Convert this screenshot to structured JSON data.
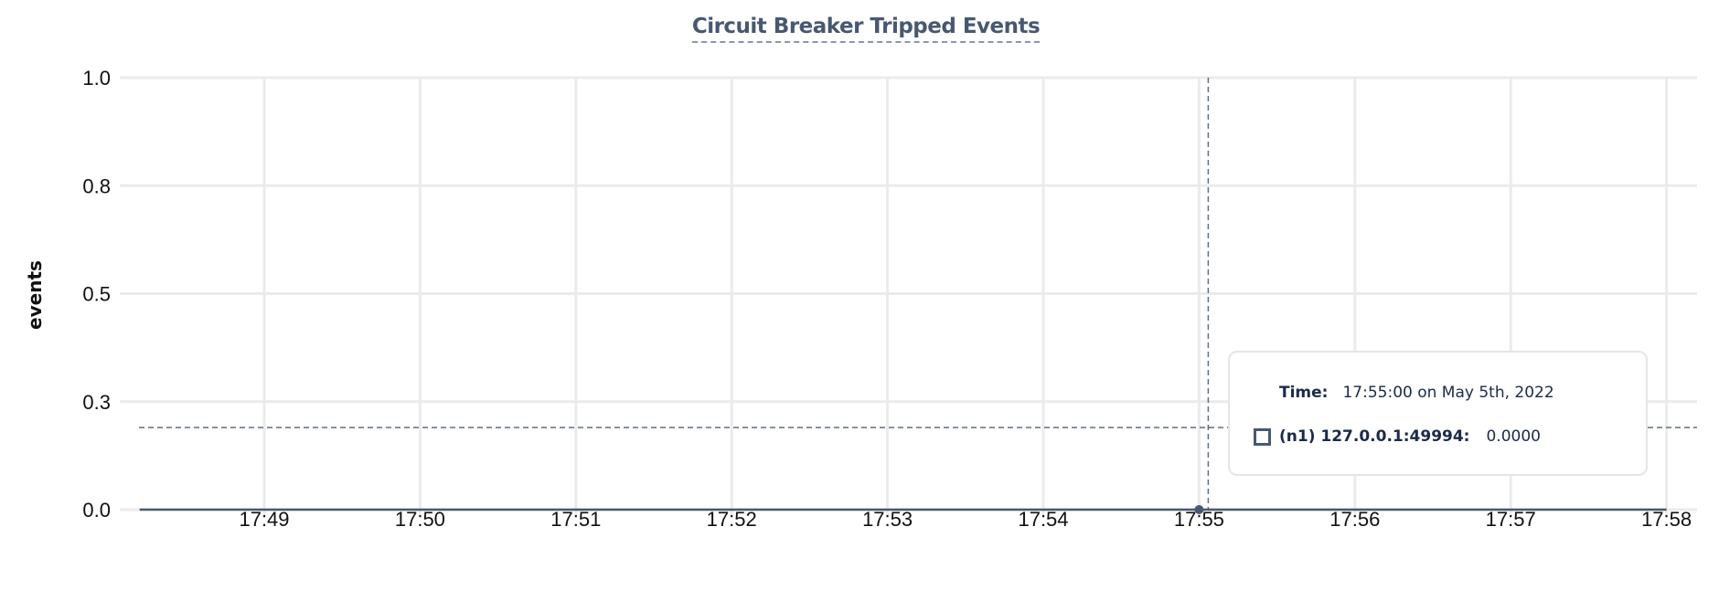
{
  "chart_data": {
    "type": "line",
    "title": "Circuit Breaker Tripped Events",
    "ylabel": "events",
    "xlabel": "",
    "ylim": [
      0,
      1
    ],
    "y_ticks": [
      "0.0",
      "0.3",
      "0.5",
      "0.8",
      "1.0"
    ],
    "y_tick_values": [
      0,
      0.25,
      0.5,
      0.75,
      1
    ],
    "x_ticks": [
      "17:49",
      "17:50",
      "17:51",
      "17:52",
      "17:53",
      "17:54",
      "17:55",
      "17:56",
      "17:57",
      "17:58"
    ],
    "xlim": [
      "17:48:12",
      "17:58:00"
    ],
    "grid": true,
    "series": [
      {
        "name": "(n1) 127.0.0.1:49994",
        "color": "#475872",
        "x": [
          "17:48:12",
          "17:55:00",
          "17:58:00"
        ],
        "values": [
          0,
          0,
          0
        ]
      }
    ],
    "hover": {
      "x": "17:55:00",
      "y_cursor": 0.19
    }
  },
  "tooltip": {
    "time_label": "Time:",
    "time_value": "17:55:00 on May 5th, 2022",
    "series_label": "(n1) 127.0.0.1:49994:",
    "series_value": "0.0000"
  },
  "colors": {
    "title": "#475872",
    "grid": "#ebebeb",
    "line": "#475872",
    "cursor": "#5f6f80"
  }
}
